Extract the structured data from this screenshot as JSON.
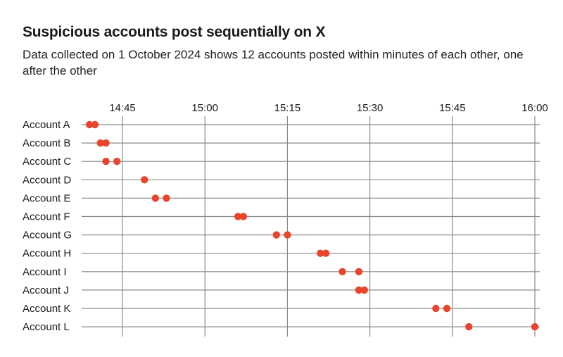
{
  "title": "Suspicious accounts post sequentially on X",
  "subtitle": "Data collected on 1 October 2024 shows 12 accounts posted within minutes of each other, one after the other",
  "colors": {
    "dot": "#e8452c",
    "grid": "#8a8a8a",
    "text": "#1a1a1a"
  },
  "chart_data": {
    "type": "scatter",
    "title": "Suspicious accounts post sequentially on X",
    "x_axis": {
      "ticks": [
        "14:45",
        "15:00",
        "15:15",
        "15:30",
        "15:45",
        "16:00"
      ],
      "range": [
        "14:39",
        "16:01"
      ],
      "position": "top"
    },
    "grid": true,
    "categories": [
      "Account A",
      "Account B",
      "Account C",
      "Account D",
      "Account E",
      "Account F",
      "Account G",
      "Account H",
      "Account I",
      "Account J",
      "Account K",
      "Account L"
    ],
    "series": [
      {
        "category": "Account A",
        "times": [
          "14:39",
          "14:40"
        ]
      },
      {
        "category": "Account B",
        "times": [
          "14:41",
          "14:42"
        ]
      },
      {
        "category": "Account C",
        "times": [
          "14:42",
          "14:44"
        ]
      },
      {
        "category": "Account D",
        "times": [
          "14:49"
        ]
      },
      {
        "category": "Account E",
        "times": [
          "14:51",
          "14:53"
        ]
      },
      {
        "category": "Account F",
        "times": [
          "15:06",
          "15:07"
        ]
      },
      {
        "category": "Account G",
        "times": [
          "15:13",
          "15:15"
        ]
      },
      {
        "category": "Account H",
        "times": [
          "15:21",
          "15:22"
        ]
      },
      {
        "category": "Account I",
        "times": [
          "15:25",
          "15:28"
        ]
      },
      {
        "category": "Account J",
        "times": [
          "15:28",
          "15:29"
        ]
      },
      {
        "category": "Account K",
        "times": [
          "15:42",
          "15:44"
        ]
      },
      {
        "category": "Account L",
        "times": [
          "15:48",
          "16:00"
        ]
      }
    ]
  }
}
